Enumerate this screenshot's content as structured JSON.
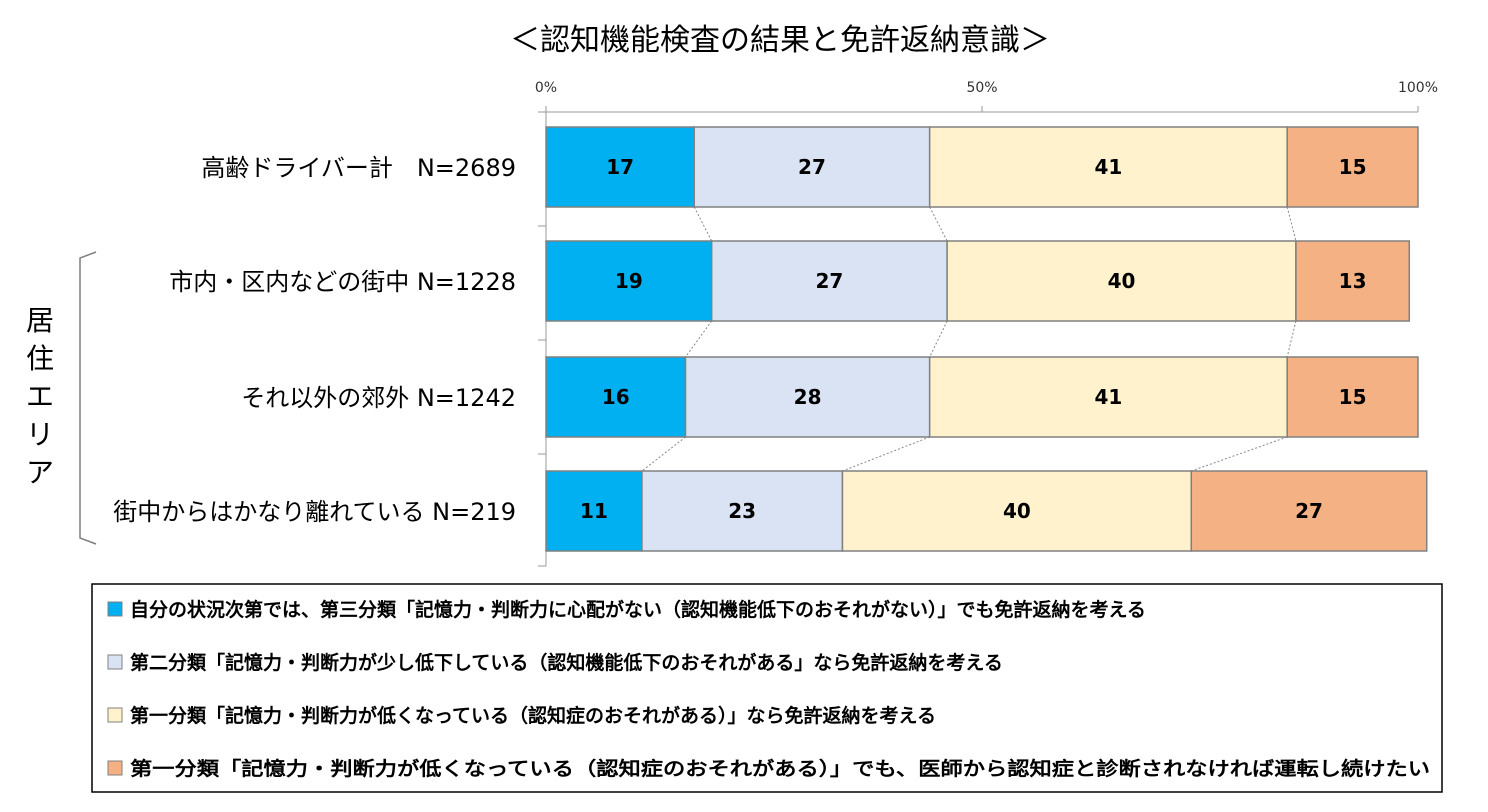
{
  "chart_data": {
    "type": "bar",
    "orientation": "horizontal",
    "stacked": "percent",
    "title": "＜認知機能検査の結果と免許返納意識＞",
    "x_ticks": [
      "0%",
      "50%",
      "100%"
    ],
    "xlim": [
      0,
      100
    ],
    "group_label": "居住エリア",
    "categories": [
      "高齢ドライバー計　N=2689",
      "市内・区内などの街中 N=1228",
      "それ以外の郊外 N=1242",
      "街中からはかなり離れている N=219"
    ],
    "series": [
      {
        "name": "自分の状況次第では、第三分類「記憶力・判断力に心配がない（認知機能低下のおそれがない）」でも免許返納を考える",
        "color": "#00B0F0",
        "values": [
          17,
          19,
          16,
          11
        ]
      },
      {
        "name": "第二分類「記憶力・判断力が少し低下している（認知機能低下のおそれがある」なら免許返納を考える",
        "color": "#DAE3F3",
        "values": [
          27,
          27,
          28,
          23
        ]
      },
      {
        "name": "第一分類「記憶力・判断力が低くなっている（認知症のおそれがある）」なら免許返納を考える",
        "color": "#FFF2CC",
        "values": [
          41,
          40,
          41,
          40
        ]
      },
      {
        "name": "第一分類「記憶力・判断力が低くなっている（認知症のおそれがある）」でも、医師から認知症と診断されなければ運転し続けたい",
        "color": "#F4B183",
        "values": [
          15,
          13,
          15,
          27
        ]
      }
    ],
    "legend_position": "bottom",
    "grid": false
  }
}
